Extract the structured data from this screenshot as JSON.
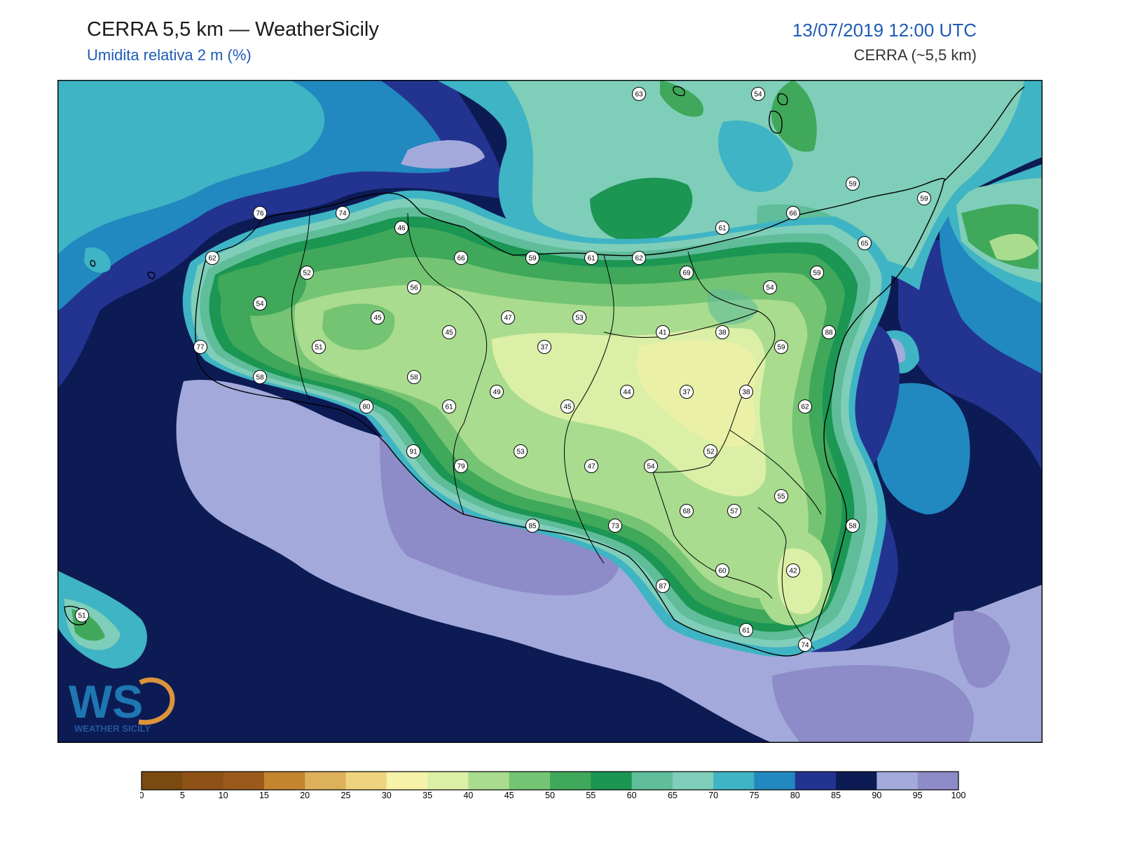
{
  "header": {
    "title": "CERRA 5,5 km — WeatherSicily",
    "subtitle": "Umidita relativa 2 m (%)",
    "datetime": "13/07/2019 12:00 UTC",
    "model": "CERRA (~5,5 km)"
  },
  "logo": {
    "text": "WS",
    "subtext": "WEATHER SICILY"
  },
  "colorbar": {
    "ticks": [
      "0",
      "5",
      "10",
      "15",
      "20",
      "25",
      "30",
      "35",
      "40",
      "45",
      "50",
      "55",
      "60",
      "65",
      "70",
      "75",
      "80",
      "85",
      "90",
      "95",
      "100"
    ],
    "colors": [
      "#7a4a10",
      "#8e5216",
      "#995a1c",
      "#c4852f",
      "#ddb15a",
      "#eed47e",
      "#f6f3a8",
      "#dbefa6",
      "#a9dc8e",
      "#75c474",
      "#3fa85a",
      "#1b9653",
      "#5fbd9a",
      "#7fceb9",
      "#3fb4c4",
      "#2188c0",
      "#233390",
      "#0d1b55",
      "#a3aadb",
      "#8d8bc8"
    ]
  },
  "stations": [
    {
      "v": "63"
    },
    {
      "v": "54"
    },
    {
      "v": "76"
    },
    {
      "v": "74"
    },
    {
      "v": "46"
    },
    {
      "v": "62"
    },
    {
      "v": "52"
    },
    {
      "v": "54"
    },
    {
      "v": "56"
    },
    {
      "v": "66"
    },
    {
      "v": "59"
    },
    {
      "v": "61"
    },
    {
      "v": "62"
    },
    {
      "v": "69"
    },
    {
      "v": "61"
    },
    {
      "v": "66"
    },
    {
      "v": "59"
    },
    {
      "v": "59"
    },
    {
      "v": "65"
    },
    {
      "v": "59"
    },
    {
      "v": "54"
    },
    {
      "v": "45"
    },
    {
      "v": "47"
    },
    {
      "v": "53"
    },
    {
      "v": "45"
    },
    {
      "v": "41"
    },
    {
      "v": "38"
    },
    {
      "v": "88"
    },
    {
      "v": "77"
    },
    {
      "v": "51"
    },
    {
      "v": "37"
    },
    {
      "v": "59"
    },
    {
      "v": "58"
    },
    {
      "v": "58"
    },
    {
      "v": "49"
    },
    {
      "v": "44"
    },
    {
      "v": "37"
    },
    {
      "v": "38"
    },
    {
      "v": "80"
    },
    {
      "v": "61"
    },
    {
      "v": "45"
    },
    {
      "v": "62"
    },
    {
      "v": "53"
    },
    {
      "v": "52"
    },
    {
      "v": "91"
    },
    {
      "v": "79"
    },
    {
      "v": "47"
    },
    {
      "v": "54"
    },
    {
      "v": "55"
    },
    {
      "v": "68"
    },
    {
      "v": "57"
    },
    {
      "v": "85"
    },
    {
      "v": "73"
    },
    {
      "v": "58"
    },
    {
      "v": "60"
    },
    {
      "v": "42"
    },
    {
      "v": "87"
    },
    {
      "v": "51"
    },
    {
      "v": "61"
    },
    {
      "v": "74"
    }
  ]
}
